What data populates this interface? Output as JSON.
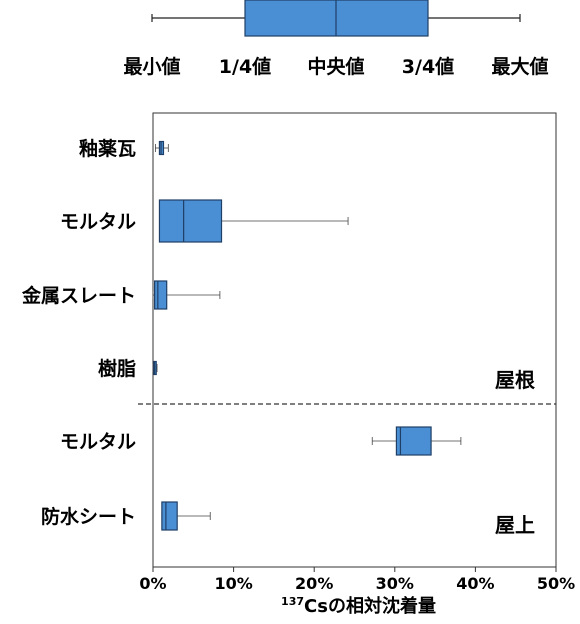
{
  "legend": {
    "labels": [
      "最小値",
      "1/4値",
      "中央値",
      "3/4値",
      "最大値"
    ]
  },
  "chart_data": {
    "type": "box",
    "title": "",
    "xlabel_super": "137",
    "xlabel_main": "Csの相対沈着量",
    "xlim": [
      0,
      50
    ],
    "xticks": [
      0,
      10,
      20,
      30,
      40,
      50
    ],
    "xtick_suffix": "%",
    "grid": false,
    "groups": [
      {
        "label": "屋根",
        "position": "bottom-right of section"
      },
      {
        "label": "屋上",
        "position": "bottom-right of section"
      }
    ],
    "categories": [
      "釉薬瓦",
      "モルタル",
      "金属スレート",
      "樹脂",
      "モルタル",
      "防水シート"
    ],
    "category_group": [
      0,
      0,
      0,
      0,
      1,
      1
    ],
    "boxes": [
      {
        "min": 0.3,
        "q1": 0.8,
        "median": 1.0,
        "q3": 1.3,
        "max": 1.9
      },
      {
        "min": 0.8,
        "q1": 0.8,
        "median": 3.8,
        "q3": 8.5,
        "max": 24.2
      },
      {
        "min": 0.0,
        "q1": 0.2,
        "median": 0.6,
        "q3": 1.7,
        "max": 8.3
      },
      {
        "min": 0.0,
        "q1": 0.1,
        "median": 0.2,
        "q3": 0.4,
        "max": 0.5
      },
      {
        "min": 27.2,
        "q1": 30.2,
        "median": 30.7,
        "q3": 34.5,
        "max": 38.2
      },
      {
        "min": 1.1,
        "q1": 1.1,
        "median": 1.6,
        "q3": 3.0,
        "max": 7.1
      }
    ],
    "box_color": "#4a8fd4",
    "outline_color": "#1f3f66"
  }
}
